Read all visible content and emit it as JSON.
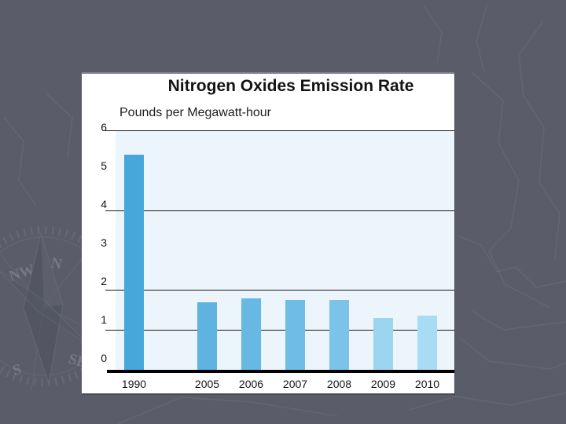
{
  "slide": {
    "background_color": "#5a5c6a"
  },
  "watermark": {
    "compass_labels": {
      "n": "N",
      "nw": "NW",
      "s": "S",
      "se": "SE"
    }
  },
  "chart_data": {
    "type": "bar",
    "title": "Nitrogen Oxides Emission Rate",
    "subtitle": "Pounds per Megawatt-hour",
    "categories": [
      "1990",
      "2005",
      "2006",
      "2007",
      "2008",
      "2009",
      "2010"
    ],
    "values": [
      5.4,
      1.7,
      1.8,
      1.75,
      1.75,
      1.3,
      1.35
    ],
    "bar_colors": [
      "#47a7db",
      "#5fb3e1",
      "#68b8e4",
      "#6fbce6",
      "#7cc3e9",
      "#9bd5f0",
      "#a8dcf4"
    ],
    "y_ticks": [
      0,
      1,
      2,
      3,
      4,
      5,
      6
    ],
    "gridline_values": [
      6,
      4,
      2,
      1
    ],
    "ylim": [
      0,
      6
    ],
    "xlabel": "",
    "ylabel": "Pounds per Megawatt-hour",
    "plot_bg": "#ecf5fb",
    "grid": "horizontal lines at 6, 4, 2, 1 only",
    "legend": "none"
  }
}
